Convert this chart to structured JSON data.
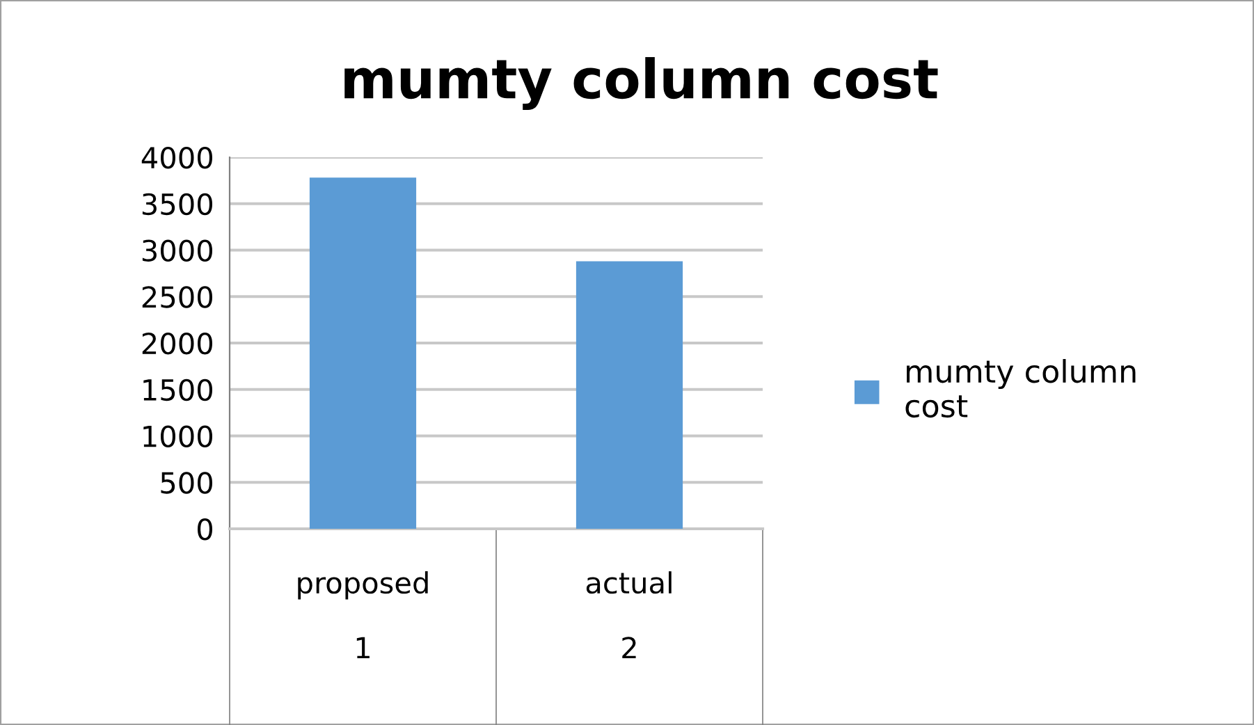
{
  "chart_data": {
    "type": "bar",
    "title": "mumty column cost",
    "categories": [
      "proposed\n\n1",
      "actual\n\n2"
    ],
    "series": [
      {
        "name": "mumty column\ncost",
        "color": "#5b9bd5",
        "values": [
          3780,
          2880
        ]
      }
    ],
    "ylim": [
      0,
      4000
    ],
    "yticks": [
      0,
      500,
      1000,
      1500,
      2000,
      2500,
      3000,
      3500,
      4000
    ],
    "grid": "y",
    "legend": "right"
  }
}
